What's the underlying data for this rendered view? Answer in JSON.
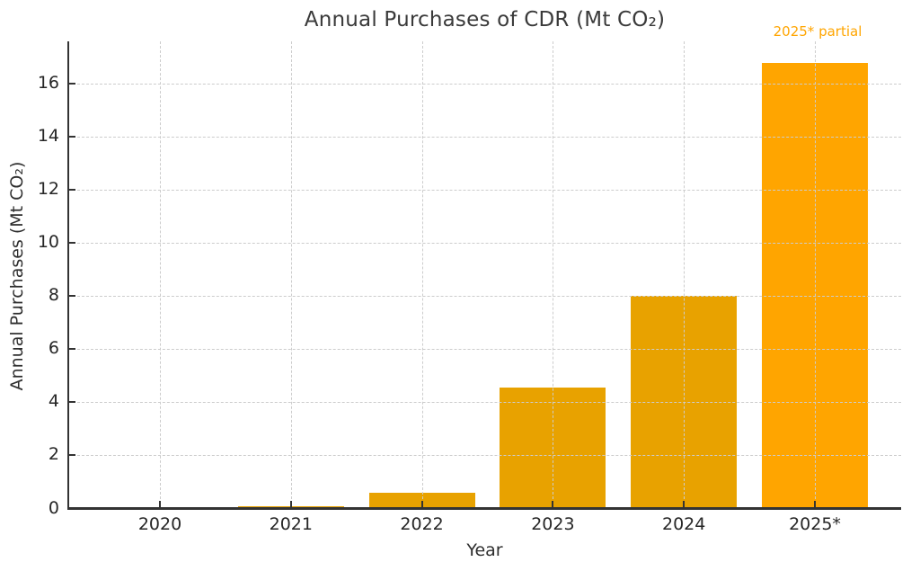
{
  "chart_data": {
    "type": "bar",
    "title": "Annual Purchases of CDR (Mt CO₂)",
    "xlabel": "Year",
    "ylabel": "Annual Purchases (Mt CO₂)",
    "annotation": "2025* partial",
    "categories": [
      "2020",
      "2021",
      "2022",
      "2023",
      "2024",
      "2025*"
    ],
    "values": [
      0.02,
      0.1,
      0.6,
      4.55,
      8.0,
      16.8
    ],
    "highlight_index": 5,
    "yticks": [
      0,
      2,
      4,
      6,
      8,
      10,
      12,
      14,
      16
    ],
    "ylim": [
      0,
      17.6
    ],
    "grid": {
      "visible": true,
      "axes": "both",
      "style": "dashed"
    },
    "legend_position": "none"
  },
  "colors": {
    "bar_default": "#E8A200",
    "bar_highlight": "#FFA500",
    "annotation_text": "#FFA500",
    "title_text": "#3a3a3a",
    "tick_text": "#262626",
    "spine": "#333333",
    "grid": "#cccccc",
    "background": "#ffffff"
  }
}
